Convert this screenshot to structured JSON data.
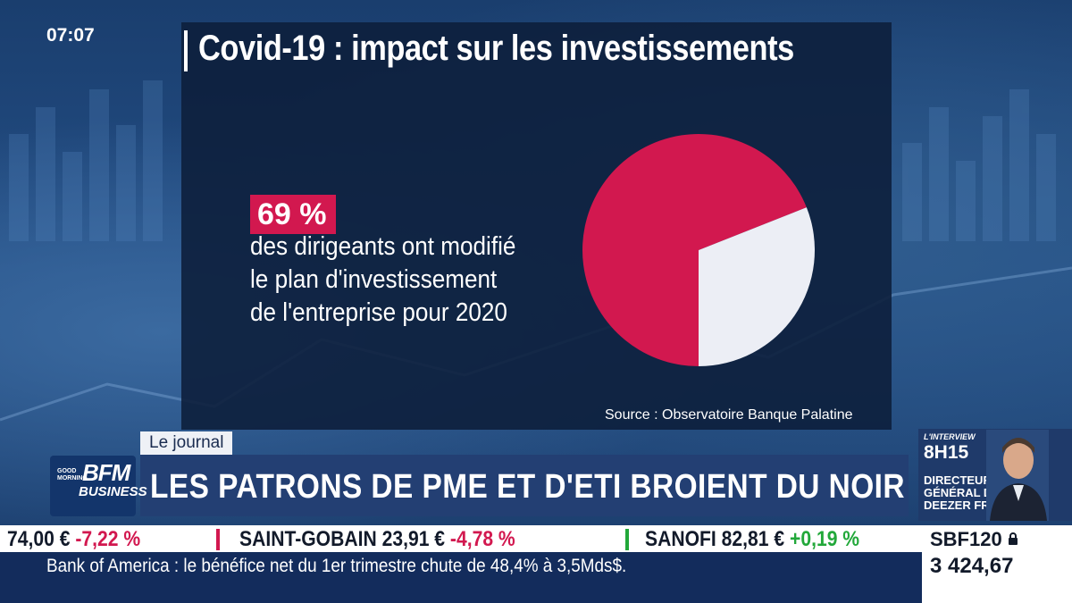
{
  "clock": "07:07",
  "title": "Covid-19 : impact sur les investissements",
  "highlight": {
    "percent": "69 %",
    "lines": [
      "des dirigeants ont modifié",
      "le plan d'investissement",
      "de l'entreprise pour 2020"
    ]
  },
  "chart_data": {
    "type": "pie",
    "slices": [
      {
        "label": "",
        "value": 69,
        "color": "#d2184f"
      },
      {
        "label": "",
        "value": 31,
        "color": "#eceef5"
      }
    ]
  },
  "source": "Source : Observatoire Banque Palatine",
  "tag": "Le journal",
  "headline": "LES PATRONS DE PME ET D'ETI BROIENT DU NOIR",
  "logo": {
    "good": "GOOD\nMORNING",
    "bfm": "BFM",
    "business": "BUSINESS"
  },
  "interview": {
    "label": "L'INTERVIEW",
    "time": "8H15",
    "role_lines": [
      "DIRECTEUR",
      "GÉNÉRAL DE",
      "DEEZER FRANCE"
    ]
  },
  "ticker": [
    {
      "name": "",
      "price": "74,00 €",
      "change": "-7,22 %",
      "direction": "down"
    },
    {
      "name": "SAINT-GOBAIN",
      "price": "23,91 €",
      "change": "-4,78 %",
      "direction": "down"
    },
    {
      "name": "SANOFI",
      "price": "82,81 €",
      "change": "+0,19 %",
      "direction": "up"
    }
  ],
  "news": "Bank of America : le bénéfice net du 1er trimestre chute de 48,4% à 3,5Mds$.",
  "index": {
    "name": "SBF120",
    "value": "3 424,67"
  },
  "colors": {
    "accent": "#d2184f",
    "positive": "#22a83a",
    "navy": "#233f73"
  }
}
